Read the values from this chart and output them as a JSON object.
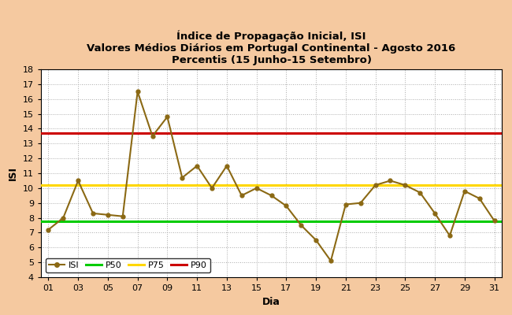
{
  "title": "Índice de Propagação Inicial, ISI\nValores Médios Diários em Portugal Continental - Agosto 2016\nPercentis (15 Junho-15 Setembro)",
  "xlabel": "Dia",
  "ylabel": "ISI",
  "background_color": "#f5c9a0",
  "plot_bg_color": "#ffffff",
  "days": [
    1,
    2,
    3,
    4,
    5,
    6,
    7,
    8,
    9,
    10,
    11,
    12,
    13,
    14,
    15,
    16,
    17,
    18,
    19,
    20,
    21,
    22,
    23,
    24,
    25,
    26,
    27,
    28,
    29,
    30,
    31
  ],
  "isi_values": [
    7.2,
    8.0,
    10.5,
    8.3,
    8.2,
    8.1,
    16.5,
    13.5,
    14.8,
    10.7,
    11.5,
    10.0,
    11.5,
    9.5,
    10.0,
    9.5,
    8.8,
    7.5,
    6.5,
    5.1,
    8.9,
    9.0,
    10.2,
    10.5,
    10.2,
    9.7,
    8.3,
    6.8,
    9.8,
    9.3,
    7.8
  ],
  "p50": 7.75,
  "p75": 10.2,
  "p90": 13.7,
  "isi_color": "#8B6914",
  "p50_color": "#00cc00",
  "p75_color": "#FFD700",
  "p90_color": "#cc0000",
  "ylim": [
    4,
    18
  ],
  "yticks": [
    4,
    5,
    6,
    7,
    8,
    9,
    10,
    11,
    12,
    13,
    14,
    15,
    16,
    17,
    18
  ],
  "xtick_labels": [
    "01",
    "03",
    "05",
    "07",
    "09",
    "11",
    "13",
    "15",
    "17",
    "19",
    "21",
    "23",
    "25",
    "27",
    "29",
    "31"
  ],
  "xtick_positions": [
    1,
    3,
    5,
    7,
    9,
    11,
    13,
    15,
    17,
    19,
    21,
    23,
    25,
    27,
    29,
    31
  ],
  "title_fontsize": 9.5,
  "axis_label_fontsize": 9,
  "tick_fontsize": 8,
  "legend_fontsize": 8
}
